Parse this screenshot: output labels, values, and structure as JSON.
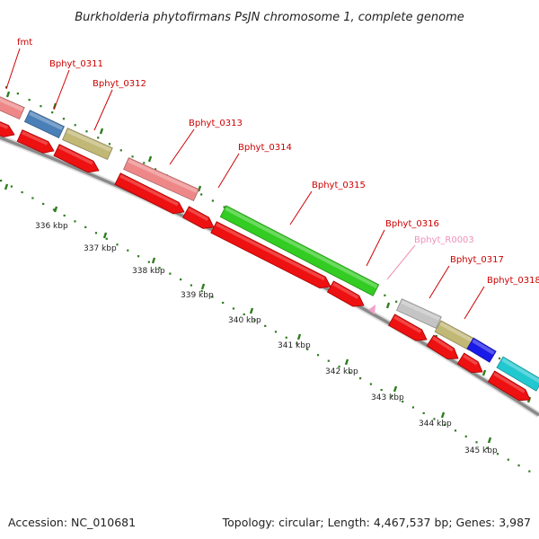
{
  "title": "Burkholderia phytofirmans PsJN chromosome 1, complete genome",
  "colors": {
    "red_label": "#cc0000",
    "pink_label": "#f090b8",
    "backbone": "#8a8a8a",
    "tick_green": "#2e7d1e",
    "cds": "#ee1111"
  },
  "genes": [
    {
      "name": "fmt",
      "color": "#cc0000",
      "fill": "#ee8888"
    },
    {
      "name": "Bphyt_0311",
      "color": "#cc0000",
      "fill": "#4a80b8"
    },
    {
      "name": "Bphyt_0312",
      "color": "#cc0000",
      "fill": "#c2b876"
    },
    {
      "name": "Bphyt_0313",
      "color": "#cc0000",
      "fill": "#ee8888"
    },
    {
      "name": "Bphyt_0314",
      "color": "#cc0000",
      "fill": ""
    },
    {
      "name": "Bphyt_0315",
      "color": "#cc0000",
      "fill": "#33cc22"
    },
    {
      "name": "Bphyt_0316",
      "color": "#cc0000",
      "fill": ""
    },
    {
      "name": "Bphyt_R0003",
      "color": "#f090b8",
      "fill": "#f4a0c8"
    },
    {
      "name": "Bphyt_0317",
      "color": "#cc0000",
      "fill": "#c4c4c4"
    },
    {
      "name": "Bphyt_0318",
      "color": "#cc0000",
      "fill": "#c2b876"
    },
    {
      "name": "",
      "color": "",
      "fill": "#1a1ae8"
    },
    {
      "name": "",
      "color": "",
      "fill": "#22c8d0"
    }
  ],
  "kbp_ticks": [
    "336 kbp",
    "337 kbp",
    "338 kbp",
    "339 kbp",
    "340 kbp",
    "341 kbp",
    "342 kbp",
    "343 kbp",
    "344 kbp",
    "345 kbp"
  ],
  "footer": {
    "accession": "Accession: NC_010681",
    "summary": "Topology: circular; Length: 4,467,537 bp; Genes: 3,987"
  }
}
